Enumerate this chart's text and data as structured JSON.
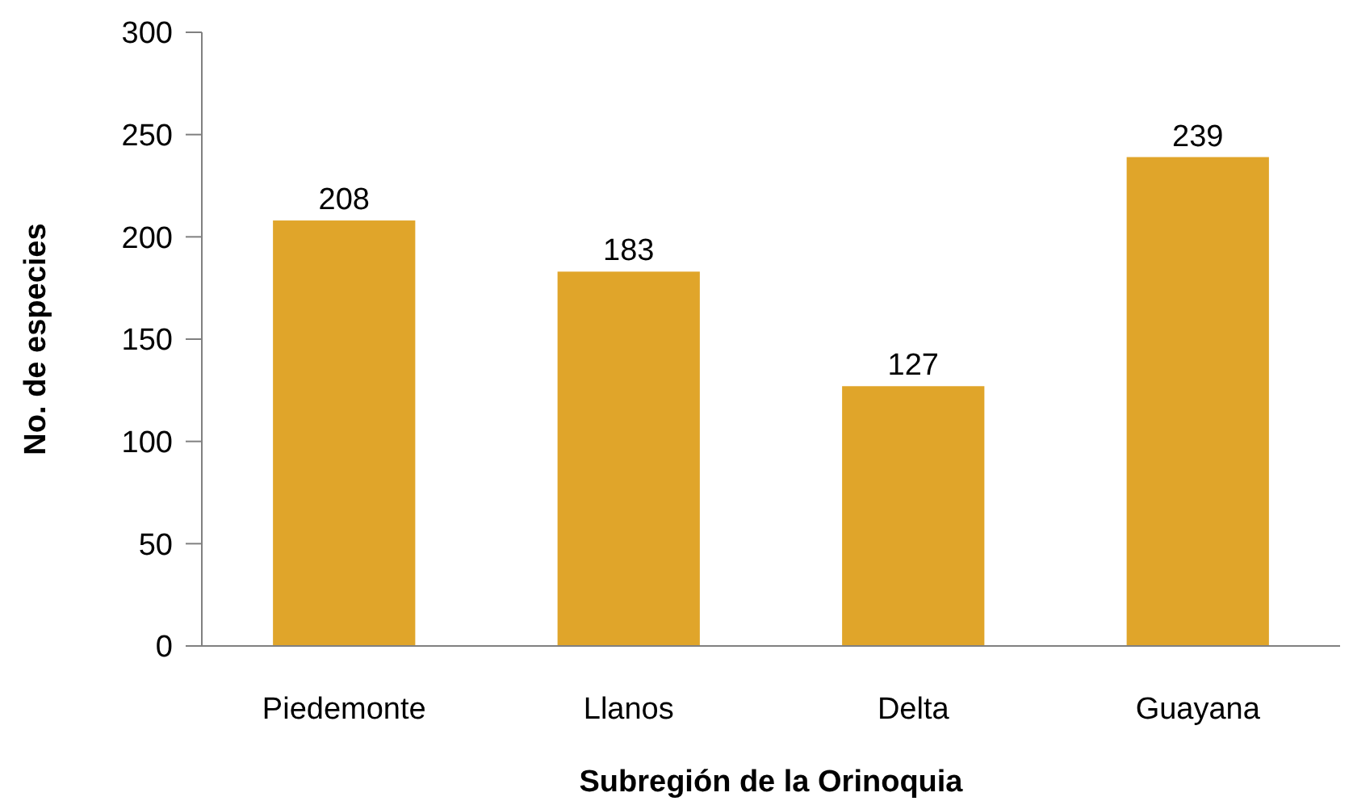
{
  "chart_data": {
    "type": "bar",
    "xlabel": "Subregión de la Orinoquia",
    "ylabel": "No. de especies",
    "categories": [
      "Piedemonte",
      "Llanos",
      "Delta",
      "Guayana"
    ],
    "values": [
      208,
      183,
      127,
      239
    ],
    "color": "#e0a52a",
    "ylim": [
      0,
      300
    ],
    "yticks": [
      0,
      50,
      100,
      150,
      200,
      250,
      300
    ],
    "grid": false,
    "data_labels": true
  }
}
